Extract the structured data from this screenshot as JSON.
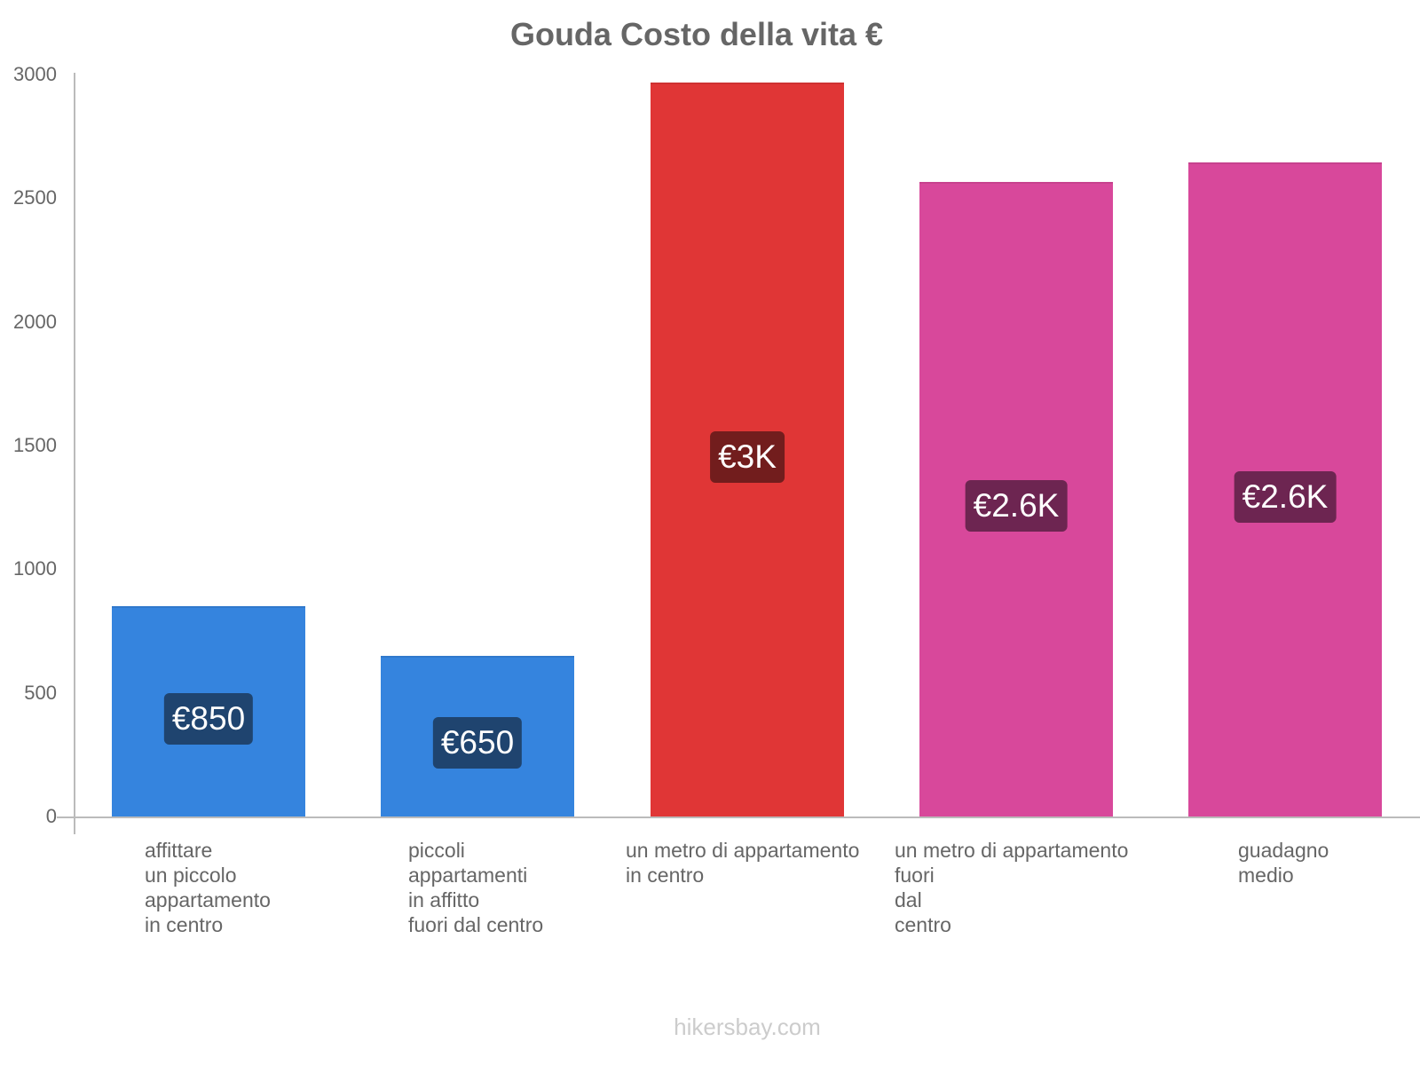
{
  "chart_data": {
    "type": "bar",
    "title": "Gouda Costo della vita €",
    "xlabel": "",
    "ylabel": "",
    "ylim": [
      0,
      3000
    ],
    "yticks": [
      0,
      500,
      1000,
      1500,
      2000,
      2500,
      3000
    ],
    "grid": false,
    "legend": null,
    "categories": [
      "affittare un piccolo appartamento in centro",
      "piccoli appartamenti in affitto fuori dal centro",
      "un metro di appartamento in centro",
      "un metro di appartamento fuori dal centro",
      "guadagno medio"
    ],
    "values": [
      850,
      650,
      2966,
      2566,
      2643
    ],
    "data_labels": [
      "€850",
      "€650",
      "€3K",
      "€2.6K",
      "€2.6K"
    ],
    "colors": [
      "#3584de",
      "#3584de",
      "#e03636",
      "#d8489b",
      "#d8489b"
    ]
  },
  "title": "Gouda Costo della vita €",
  "yaxis": {
    "ticks": [
      {
        "label": "3000",
        "value": 3000
      },
      {
        "label": "2500",
        "value": 2500
      },
      {
        "label": "2000",
        "value": 2000
      },
      {
        "label": "1500",
        "value": 1500
      },
      {
        "label": "1000",
        "value": 1000
      },
      {
        "label": "500",
        "value": 500
      },
      {
        "label": "0",
        "value": 0
      }
    ]
  },
  "bars": [
    {
      "label": "affittare\nun piccolo\nappartamento\nin centro",
      "value": 850,
      "badge": "€850",
      "color": "#3584de",
      "badge_color": "#1f446f"
    },
    {
      "label": "piccoli\nappartamenti\nin affitto\nfuori dal centro",
      "value": 650,
      "badge": "€650",
      "color": "#3584de",
      "badge_color": "#1f446f"
    },
    {
      "label": "un metro di appartamento\nin centro",
      "value": 2966,
      "badge": "€3K",
      "color": "#e03636",
      "badge_color": "#721d1d"
    },
    {
      "label": "un metro di appartamento\nfuori\ndal\ncentro",
      "value": 2566,
      "badge": "€2.6K",
      "color": "#d8489b",
      "badge_color": "#6d2551"
    },
    {
      "label": "guadagno\nmedio",
      "value": 2643,
      "badge": "€2.6K",
      "color": "#d8489b",
      "badge_color": "#6d2551"
    }
  ],
  "footer": "hikersbay.com"
}
